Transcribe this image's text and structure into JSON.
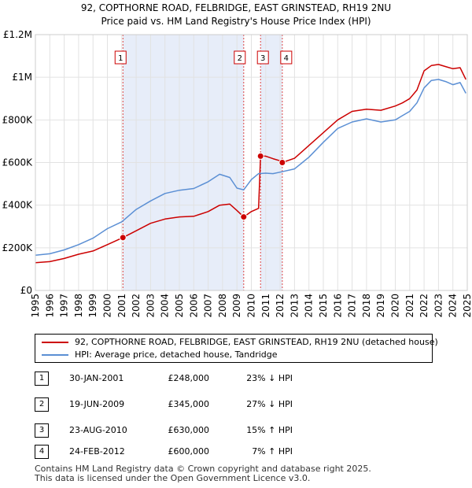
{
  "chart_data": {
    "type": "line",
    "title": "92, COPTHORNE ROAD, FELBRIDGE, EAST GRINSTEAD, RH19 2NU",
    "subtitle": "Price paid vs. HM Land Registry's House Price Index (HPI)",
    "xlim": [
      1995,
      2025
    ],
    "ylim": [
      0,
      1200000
    ],
    "y_ticks": [
      0,
      200000,
      400000,
      600000,
      800000,
      1000000,
      1200000
    ],
    "y_tick_labels": [
      "£0",
      "£200K",
      "£400K",
      "£600K",
      "£800K",
      "£1M",
      "£1.2M"
    ],
    "x_ticks": [
      1995,
      1996,
      1997,
      1998,
      1999,
      2000,
      2001,
      2002,
      2003,
      2004,
      2005,
      2006,
      2007,
      2008,
      2009,
      2010,
      2011,
      2012,
      2013,
      2014,
      2015,
      2016,
      2017,
      2018,
      2019,
      2020,
      2021,
      2022,
      2023,
      2024,
      2025
    ],
    "x_tick_labels": [
      "1995",
      "1996",
      "1997",
      "1998",
      "1999",
      "2000",
      "2001",
      "2002",
      "2003",
      "2004",
      "2005",
      "2006",
      "2007",
      "2008",
      "2009",
      "2010",
      "2011",
      "2012",
      "2013",
      "2014",
      "2015",
      "2016",
      "2017",
      "2018",
      "2019",
      "2020",
      "2021",
      "2022",
      "2023",
      "2024",
      "2025"
    ],
    "series": [
      {
        "name": "92, COPTHORNE ROAD, FELBRIDGE, EAST GRINSTEAD, RH19 2NU (detached house)",
        "color": "#cc0000",
        "x": [
          1995.0,
          1996.0,
          1997.0,
          1998.0,
          1999.0,
          2000.0,
          2001.08,
          2002.0,
          2003.0,
          2004.0,
          2005.0,
          2006.0,
          2007.0,
          2007.8,
          2008.5,
          2009.0,
          2009.47,
          2010.0,
          2010.5,
          2010.64,
          2011.0,
          2011.5,
          2012.0,
          2012.15,
          2013.0,
          2014.0,
          2015.0,
          2016.0,
          2017.0,
          2018.0,
          2019.0,
          2020.0,
          2020.5,
          2021.0,
          2021.5,
          2022.0,
          2022.5,
          2023.0,
          2023.5,
          2024.0,
          2024.5,
          2024.9
        ],
        "values": [
          130000,
          135000,
          150000,
          170000,
          185000,
          215000,
          248000,
          280000,
          315000,
          335000,
          345000,
          348000,
          370000,
          400000,
          405000,
          375000,
          345000,
          370000,
          385000,
          630000,
          630000,
          618000,
          608000,
          600000,
          620000,
          680000,
          740000,
          800000,
          840000,
          850000,
          845000,
          865000,
          880000,
          900000,
          940000,
          1030000,
          1055000,
          1060000,
          1050000,
          1040000,
          1045000,
          990000
        ]
      },
      {
        "name": "HPI: Average price, detached house, Tandridge",
        "color": "#5b8fd4",
        "x": [
          1995.0,
          1996.0,
          1997.0,
          1998.0,
          1999.0,
          2000.0,
          2001.0,
          2002.0,
          2003.0,
          2004.0,
          2005.0,
          2006.0,
          2007.0,
          2007.8,
          2008.5,
          2009.0,
          2009.47,
          2010.0,
          2010.5,
          2011.0,
          2011.5,
          2012.0,
          2013.0,
          2014.0,
          2015.0,
          2016.0,
          2017.0,
          2018.0,
          2019.0,
          2020.0,
          2020.5,
          2021.0,
          2021.5,
          2022.0,
          2022.5,
          2023.0,
          2023.5,
          2024.0,
          2024.5,
          2024.9
        ],
        "values": [
          165000,
          172000,
          190000,
          215000,
          245000,
          290000,
          322000,
          380000,
          420000,
          455000,
          470000,
          478000,
          510000,
          545000,
          530000,
          480000,
          472000,
          520000,
          548000,
          550000,
          548000,
          555000,
          570000,
          625000,
          695000,
          760000,
          790000,
          805000,
          790000,
          800000,
          820000,
          840000,
          880000,
          950000,
          985000,
          990000,
          980000,
          965000,
          975000,
          925000
        ]
      }
    ],
    "sale_points": [
      {
        "label": "1",
        "x": 2001.08,
        "value": 248000
      },
      {
        "label": "2",
        "x": 2009.47,
        "value": 345000
      },
      {
        "label": "3",
        "x": 2010.64,
        "value": 630000
      },
      {
        "label": "4",
        "x": 2012.15,
        "value": 600000
      }
    ],
    "shaded_ranges": [
      [
        2001.08,
        2009.47
      ],
      [
        2010.64,
        2012.15
      ]
    ]
  },
  "legend": {
    "property_label": "92, COPTHORNE ROAD, FELBRIDGE, EAST GRINSTEAD, RH19 2NU (detached house)",
    "hpi_label": "HPI: Average price, detached house, Tandridge",
    "property_color": "#cc0000",
    "hpi_color": "#5b8fd4"
  },
  "transactions": [
    {
      "num": "1",
      "date": "30-JAN-2001",
      "price": "£248,000",
      "hpi": "23% ↓ HPI"
    },
    {
      "num": "2",
      "date": "19-JUN-2009",
      "price": "£345,000",
      "hpi": "27% ↓ HPI"
    },
    {
      "num": "3",
      "date": "23-AUG-2010",
      "price": "£630,000",
      "hpi": "15% ↑ HPI"
    },
    {
      "num": "4",
      "date": "24-FEB-2012",
      "price": "£600,000",
      "hpi": "7% ↑ HPI"
    }
  ],
  "footer": {
    "line1": "Contains HM Land Registry data © Crown copyright and database right 2025.",
    "line2": "This data is licensed under the Open Government Licence v3.0."
  }
}
